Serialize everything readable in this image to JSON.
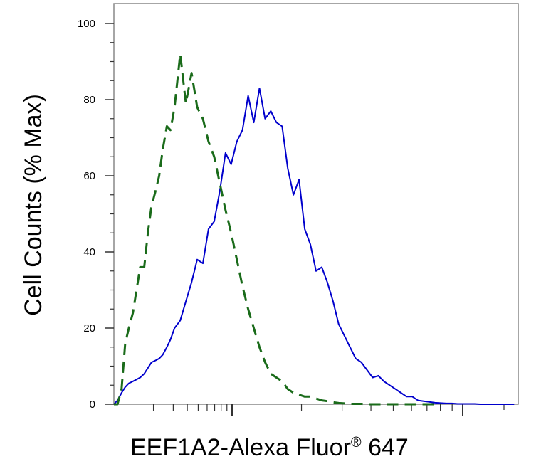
{
  "chart_data": {
    "type": "line",
    "title": "",
    "xlabel": "EEF1A2-Alexa Fluor",
    "xlabel_mark": "®",
    "xlabel_tail": " 647",
    "ylabel": "Cell Counts (% Max)",
    "xscale": "log",
    "xlim": [
      0,
      100
    ],
    "ylim": [
      0,
      100
    ],
    "yticks": [
      0,
      20,
      40,
      60,
      80,
      100
    ],
    "ytick_labels": [
      "0",
      "20",
      "40",
      "60",
      "80",
      "100"
    ],
    "grid": false,
    "legend": "none",
    "series": [
      {
        "color": "#0000cc",
        "style": "solid",
        "x": [
          0,
          0.9,
          1.9,
          2.8,
          3.7,
          4.7,
          5.6,
          6.5,
          7.5,
          8.4,
          9.3,
          10.3,
          11.2,
          12.1,
          13.1,
          14,
          15,
          16.4,
          17.8,
          19.2,
          20.6,
          22,
          23.4,
          24.8,
          26.2,
          27.6,
          29,
          30.4,
          31.8,
          33.2,
          34.6,
          36,
          37.4,
          38.8,
          40.2,
          41.6,
          43,
          44.4,
          45.8,
          47.2,
          48.6,
          50,
          51.4,
          52.8,
          54.2,
          55.6,
          57,
          58.4,
          59.8,
          61.2,
          62.6,
          64,
          65.4,
          66.8,
          68.2,
          69.6,
          71,
          72.4,
          73.8,
          75.2,
          76.6,
          78,
          79.4,
          80.8,
          82.2,
          83.6,
          85,
          86.4,
          87.8,
          89.2,
          90.6,
          92,
          93.4,
          94.8,
          96.2,
          97.6,
          99
        ],
        "y": [
          0,
          1,
          3,
          4.5,
          5.5,
          6,
          6.5,
          7,
          8,
          9.5,
          11,
          11.5,
          12,
          13,
          15,
          17,
          20,
          22,
          27,
          32,
          38,
          37,
          46,
          48,
          56,
          66,
          63,
          69,
          72,
          81,
          74,
          83,
          75,
          77,
          74,
          73,
          62,
          55,
          59,
          46,
          42,
          35,
          36,
          32,
          27,
          21,
          18,
          15,
          12,
          11,
          9,
          7,
          7.5,
          6,
          5,
          4,
          3,
          2,
          2,
          1,
          0.8,
          0.6,
          0.4,
          0.3,
          0.2,
          0.2,
          0.1,
          0.1,
          0.1,
          0.1,
          0,
          0,
          0,
          0,
          0,
          0,
          0
        ]
      },
      {
        "color": "#1a6b1a",
        "style": "dashed",
        "x": [
          0,
          0.9,
          1.9,
          2.8,
          3.7,
          4.7,
          5.6,
          6.5,
          7.5,
          8.4,
          9.3,
          10.3,
          11.2,
          12.1,
          13.1,
          14,
          15,
          16.4,
          17.8,
          19.2,
          20.6,
          22,
          23.4,
          24.8,
          26.2,
          27.6,
          29,
          30.4,
          31.8,
          33.2,
          34.6,
          36,
          37.4,
          38.8,
          40.2,
          41.6,
          43,
          44.4,
          45.8,
          47.2,
          48.6,
          50,
          51.4,
          52.8,
          54.2,
          55.6,
          57,
          58.4,
          59.8,
          61.2,
          62.6,
          64,
          65.4,
          66.8,
          68.2,
          69.6,
          71,
          72.4,
          73.8,
          75.2,
          76.6,
          78,
          79.4,
          80.8
        ],
        "y": [
          0,
          0,
          4,
          16,
          20,
          24,
          30,
          36,
          36,
          45,
          52,
          56,
          60,
          67,
          73,
          72,
          78,
          92,
          79,
          87,
          78,
          75,
          69,
          65,
          58,
          51,
          45,
          38,
          31,
          25,
          20,
          15,
          11,
          8,
          7,
          6,
          4,
          3,
          2.5,
          2,
          2,
          1.5,
          1,
          0.8,
          0.5,
          0.3,
          0.2,
          0.1,
          0.1,
          0.1,
          0,
          0,
          0,
          0,
          0,
          0,
          0,
          0,
          0,
          0,
          0,
          0,
          0,
          0
        ]
      }
    ]
  }
}
